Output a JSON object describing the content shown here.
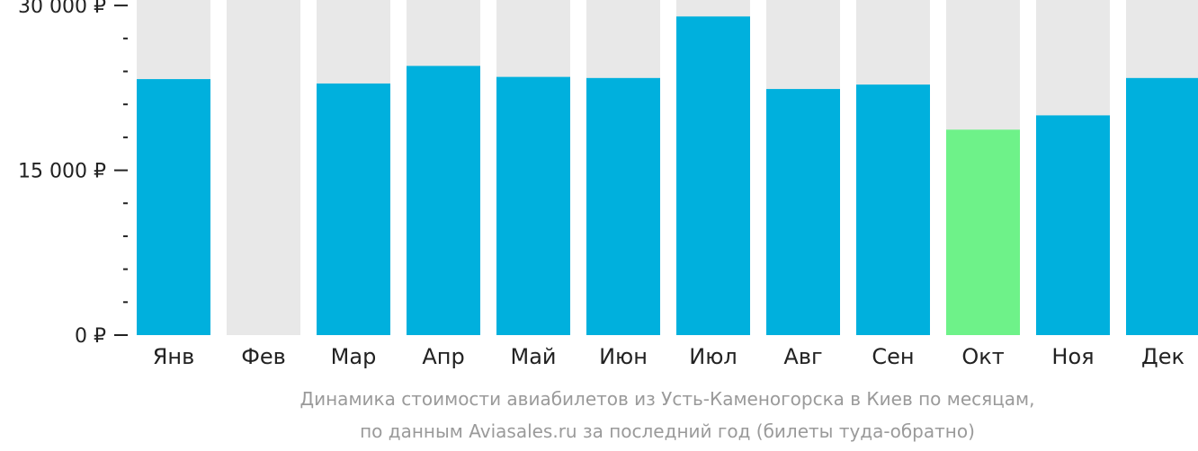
{
  "chart_data": {
    "type": "bar",
    "categories": [
      "Янв",
      "Фев",
      "Мар",
      "Апр",
      "Май",
      "Июн",
      "Июл",
      "Авг",
      "Сен",
      "Окт",
      "Ноя",
      "Дек"
    ],
    "values": [
      23300,
      0,
      22900,
      24500,
      23500,
      23400,
      29000,
      22400,
      22800,
      18700,
      20000,
      23400
    ],
    "ylim": [
      0,
      30500
    ],
    "yticks": [
      {
        "value": 0,
        "label": "0 ₽"
      },
      {
        "value": 15000,
        "label": "15 000 ₽"
      },
      {
        "value": 30000,
        "label": "30 000 ₽"
      }
    ],
    "minor_tick_step": 3000,
    "highlight_index": 9,
    "colors": {
      "bar": "#00b0dd",
      "highlight": "#6ef289",
      "background": "#e8e8e8",
      "axis": "#222222"
    },
    "caption": [
      "Динамика стоимости авиабилетов из Усть-Каменогорска в Киев по месяцам,",
      "по данным Aviasales.ru за последний год (билеты туда-обратно)"
    ]
  }
}
